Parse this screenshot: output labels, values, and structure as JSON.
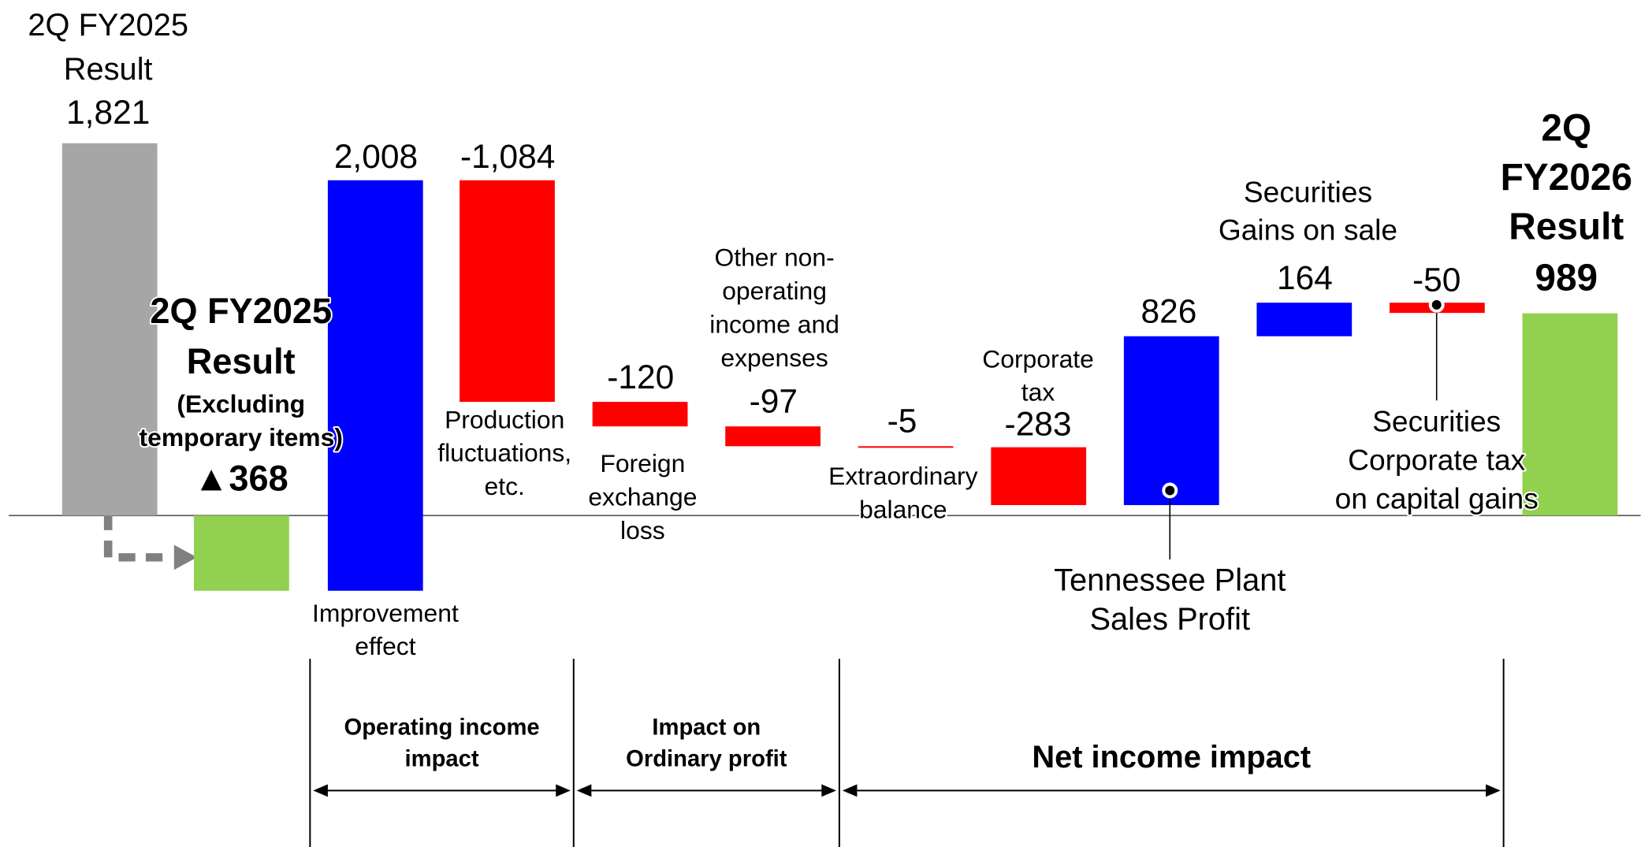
{
  "chart_data": {
    "type": "waterfall",
    "categories": [
      [
        "2Q FY2025",
        "Result"
      ],
      [
        "2Q FY2025",
        "Result",
        "(Excluding",
        "temporary items)"
      ],
      [
        "Improvement",
        "effect"
      ],
      [
        "Production",
        "fluctuations,",
        "etc."
      ],
      [
        "Foreign",
        "exchange",
        "loss"
      ],
      [
        "Other non-",
        "operating",
        "income and",
        "expenses"
      ],
      [
        "Extraordinary",
        "balance"
      ],
      [
        "Corporate",
        "tax"
      ],
      [
        "Tennessee Plant",
        "Sales Profit"
      ],
      [
        "Securities",
        "Gains on sale"
      ],
      [
        "Securities",
        "Corporate tax",
        "on capital gains"
      ],
      [
        "2Q",
        "FY2026",
        "Result"
      ]
    ],
    "values": [
      1821,
      -368,
      2008,
      -1084,
      -120,
      -97,
      -5,
      -283,
      826,
      164,
      -50,
      989
    ],
    "value_labels": [
      "1,821",
      "▲368",
      "2,008",
      "-1,084",
      "-120",
      "-97",
      "-5",
      "-283",
      "826",
      "164",
      "-50",
      "989"
    ],
    "measures": [
      "total",
      "total",
      "relative",
      "relative",
      "relative",
      "relative",
      "relative",
      "relative",
      "relative",
      "relative",
      "relative",
      "total"
    ],
    "colors": [
      "#a6a6a6",
      "#92d050",
      "#0000ff",
      "#ff0000",
      "#ff0000",
      "#ff0000",
      "#ff0000",
      "#ff0000",
      "#0000ff",
      "#0000ff",
      "#ff0000",
      "#92d050"
    ],
    "sections": [
      {
        "label": [
          "Operating income",
          "impact"
        ]
      },
      {
        "label": [
          "Impact on",
          "Ordinary profit"
        ]
      },
      {
        "label": [
          "Net income impact"
        ]
      }
    ]
  }
}
